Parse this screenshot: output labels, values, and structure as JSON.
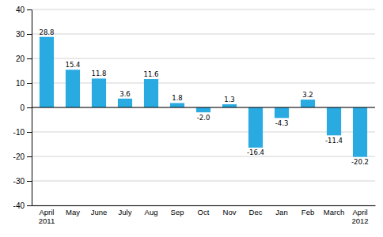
{
  "chart_data": {
    "type": "bar",
    "categories": [
      "April\n2011",
      "May",
      "June",
      "July",
      "Aug",
      "Sep",
      "Oct",
      "Nov",
      "Dec",
      "Jan",
      "Feb",
      "March",
      "April\n2012"
    ],
    "values": [
      28.8,
      15.4,
      11.8,
      3.6,
      11.6,
      1.8,
      -2.0,
      1.3,
      -16.4,
      -4.3,
      3.2,
      -11.4,
      -20.2
    ],
    "value_labels": [
      "28.8",
      "15.4",
      "11.8",
      "3.6",
      "11.6",
      "1.8",
      "-2.0",
      "1.3",
      "-16.4",
      "-4.3",
      "3.2",
      "-11.4",
      "-20.2"
    ],
    "data_labels": true,
    "color": "#29ABE2",
    "ylim": [
      -40,
      40
    ],
    "yticks": [
      -40,
      -30,
      -20,
      -10,
      0,
      10,
      20,
      30,
      40
    ],
    "grid": true
  }
}
